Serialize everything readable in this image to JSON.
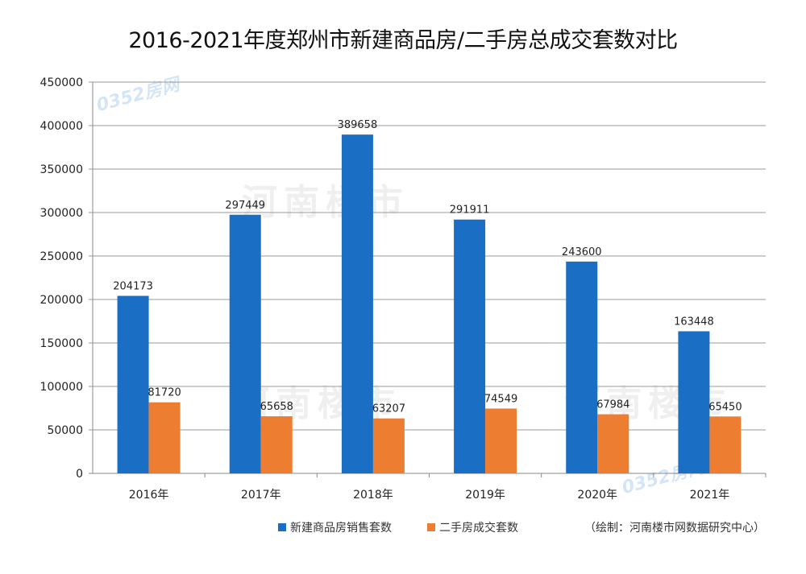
{
  "chart_data": {
    "type": "bar",
    "title": "2016-2021年度郑州市新建商品房/二手房总成交套数对比",
    "categories": [
      "2016年",
      "2017年",
      "2018年",
      "2019年",
      "2020年",
      "2021年"
    ],
    "series": [
      {
        "name": "新建商品房销售套数",
        "color": "#1a6fc4",
        "values": [
          204173,
          297449,
          389658,
          291911,
          243600,
          163448
        ]
      },
      {
        "name": "二手房成交套数",
        "color": "#ed7d31",
        "values": [
          81720,
          65658,
          63207,
          74549,
          67984,
          65450
        ]
      }
    ],
    "ylim": [
      0,
      450000
    ],
    "yticks": [
      0,
      50000,
      100000,
      150000,
      200000,
      250000,
      300000,
      350000,
      400000,
      450000
    ],
    "grid": true,
    "legend": "bottom",
    "source_note": "（绘制：河南楼市网数据研究中心）"
  },
  "watermarks": [
    "河南楼市",
    "0352房网"
  ]
}
